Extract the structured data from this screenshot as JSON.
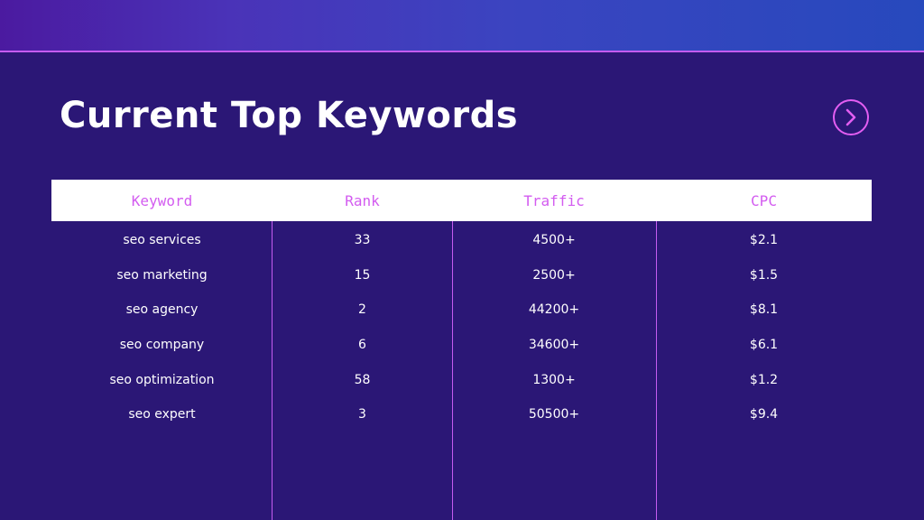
{
  "slide": {
    "title": "Current Top Keywords",
    "next_icon": "chevron-right-icon",
    "colors": {
      "background": "#2b1776",
      "accent": "#d35cf0",
      "header_bg": "#ffffff",
      "text": "#ffffff"
    }
  },
  "table": {
    "headers": [
      "Keyword",
      "Rank",
      "Traffic",
      "CPC"
    ],
    "rows": [
      [
        "seo services",
        "33",
        "4500+",
        "$2.1"
      ],
      [
        "seo marketing",
        "15",
        "2500+",
        "$1.5"
      ],
      [
        "seo agency",
        "2",
        "44200+",
        "$8.1"
      ],
      [
        "seo company",
        "6",
        "34600+",
        "$6.1"
      ],
      [
        "seo optimization",
        "58",
        "1300+",
        "$1.2"
      ],
      [
        "seo expert",
        "3",
        "50500+",
        "$9.4"
      ]
    ]
  }
}
